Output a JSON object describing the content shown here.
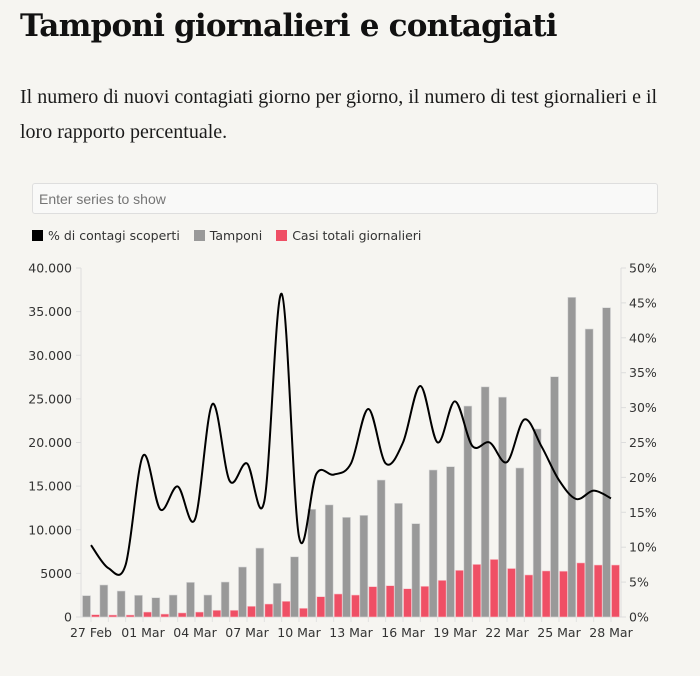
{
  "header": {
    "title": "Tamponi giornalieri e contagiati",
    "subtitle": "Il numero di nuovi contagiati giorno per giorno, il numero di test giornalieri e il loro rapporto percentuale."
  },
  "controls": {
    "series_input_placeholder": "Enter series to show",
    "series_input_value": ""
  },
  "chart_data": {
    "type": "bar+line",
    "title": "Tamponi giornalieri e contagiati",
    "legend": [
      {
        "name": "% di contagi scoperti",
        "color": "#000000"
      },
      {
        "name": "Tamponi",
        "color": "#999999"
      },
      {
        "name": "Casi totali giornalieri",
        "color": "#ef4f65"
      }
    ],
    "legend_position": "top-left",
    "categories": [
      "27 Feb",
      "28 Feb",
      "29 Feb",
      "01 Mar",
      "02 Mar",
      "03 Mar",
      "04 Mar",
      "05 Mar",
      "06 Mar",
      "07 Mar",
      "08 Mar",
      "09 Mar",
      "10 Mar",
      "11 Mar",
      "12 Mar",
      "13 Mar",
      "14 Mar",
      "15 Mar",
      "16 Mar",
      "17 Mar",
      "18 Mar",
      "19 Mar",
      "20 Mar",
      "21 Mar",
      "22 Mar",
      "23 Mar",
      "24 Mar",
      "25 Mar",
      "26 Mar",
      "27 Mar",
      "28 Mar"
    ],
    "x_tick_labels": [
      "27 Feb",
      "01 Mar",
      "04 Mar",
      "07 Mar",
      "10 Mar",
      "13 Mar",
      "16 Mar",
      "19 Mar",
      "22 Mar",
      "25 Mar",
      "28 Mar"
    ],
    "series": [
      {
        "name": "Tamponi",
        "type": "bar",
        "axis": "left",
        "color": "#999999",
        "values": [
          2450,
          3670,
          2980,
          2490,
          2210,
          2520,
          3970,
          2520,
          4010,
          5730,
          7900,
          3860,
          6900,
          12350,
          12850,
          11420,
          11650,
          15700,
          13030,
          10700,
          16850,
          17230,
          24180,
          26380,
          25200,
          17080,
          21550,
          27540,
          36640,
          33010,
          35450
        ]
      },
      {
        "name": "Casi totali giornalieri",
        "type": "bar",
        "axis": "left",
        "color": "#ef4f65",
        "values": [
          270,
          230,
          230,
          570,
          340,
          470,
          570,
          770,
          770,
          1230,
          1490,
          1800,
          1000,
          2330,
          2640,
          2520,
          3480,
          3590,
          3240,
          3520,
          4200,
          5350,
          6030,
          6600,
          5560,
          4820,
          5280,
          5250,
          6200,
          5960,
          5960
        ]
      },
      {
        "name": "% di contagi scoperti",
        "type": "line",
        "axis": "right",
        "color": "#000000",
        "values": [
          10.3,
          7.0,
          7.5,
          23.1,
          15.4,
          18.7,
          14.0,
          30.5,
          19.5,
          22.0,
          16.6,
          46.3,
          11.5,
          20.5,
          20.4,
          22.0,
          29.8,
          22.0,
          25.0,
          33.1,
          25.0,
          30.9,
          24.5,
          25.0,
          22.2,
          28.3,
          24.4,
          19.6,
          16.9,
          18.1,
          17.0
        ]
      }
    ],
    "y_left": {
      "label": "",
      "range": [
        0,
        40000
      ],
      "ticks": [
        0,
        5000,
        10000,
        15000,
        20000,
        25000,
        30000,
        35000,
        40000
      ],
      "tick_labels": [
        "0",
        "5000",
        "10.000",
        "15.000",
        "20.000",
        "25.000",
        "30.000",
        "35.000",
        "40.000"
      ]
    },
    "y_right": {
      "label": "",
      "range": [
        0,
        50
      ],
      "ticks": [
        0,
        5,
        10,
        15,
        20,
        25,
        30,
        35,
        40,
        45,
        50
      ],
      "tick_labels": [
        "0%",
        "5%",
        "10%",
        "15%",
        "20%",
        "25%",
        "30%",
        "35%",
        "40%",
        "45%",
        "50%"
      ]
    },
    "xlabel": "",
    "grid": false
  }
}
